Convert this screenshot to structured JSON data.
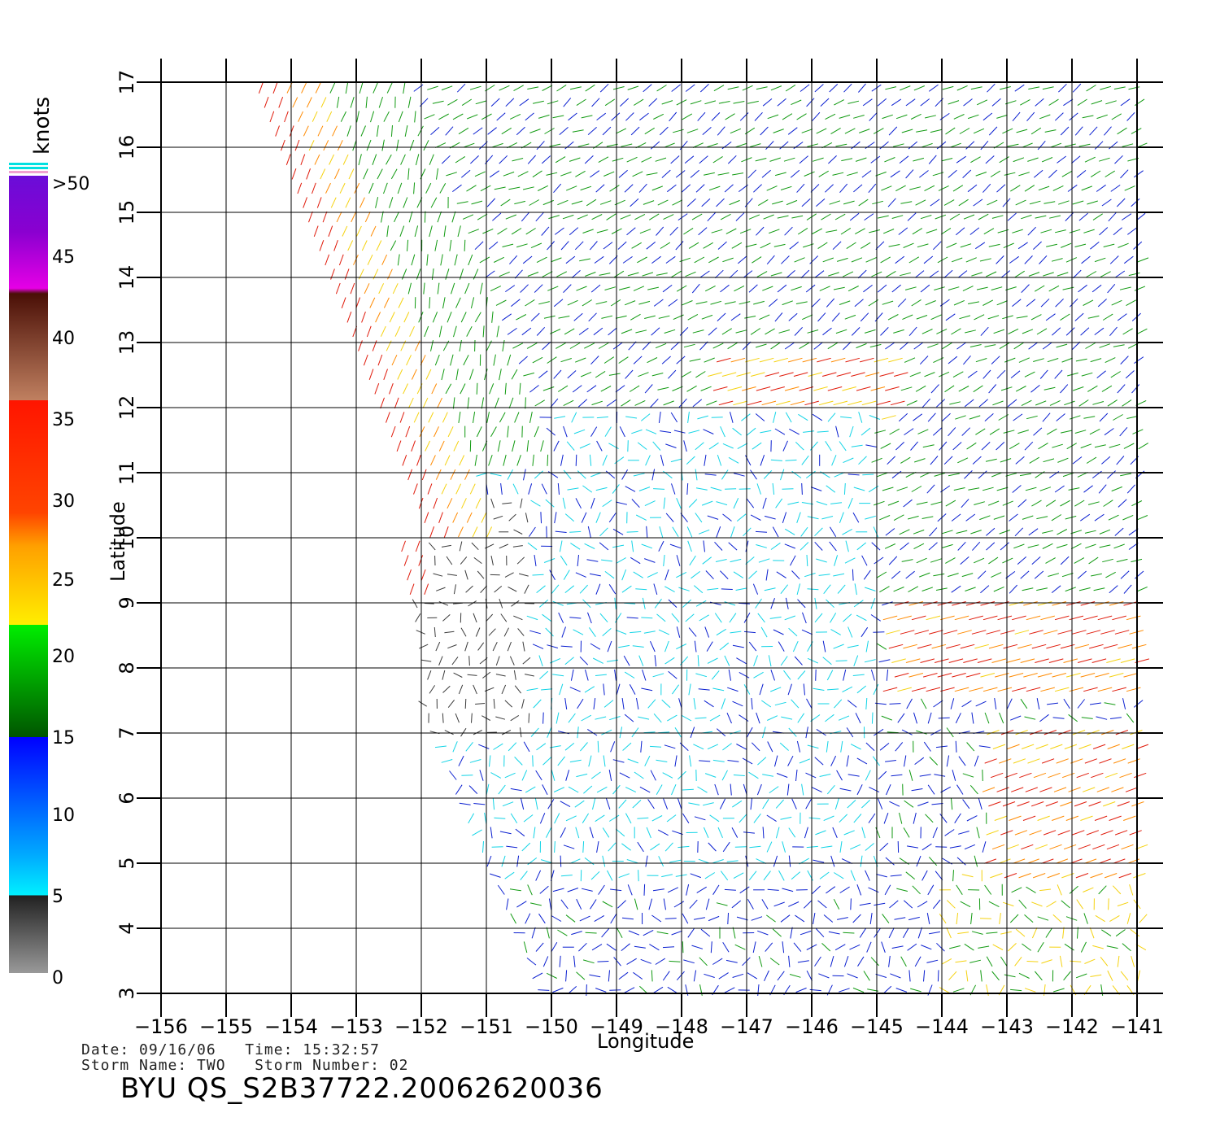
{
  "colorbar": {
    "unit": "knots",
    "labels": [
      ">50",
      "45",
      "40",
      "35",
      "30",
      "25",
      "20",
      "15",
      "10",
      "5",
      "0"
    ]
  },
  "axes": {
    "xlabel": "Longitude",
    "ylabel": "Latitude",
    "x_ticks": [
      "−156",
      "−155",
      "−154",
      "−153",
      "−152",
      "−151",
      "−150",
      "−149",
      "−148",
      "−147",
      "−146",
      "−145",
      "−144",
      "−143",
      "−142",
      "−141"
    ],
    "y_ticks": [
      "3",
      "4",
      "5",
      "6",
      "7",
      "8",
      "9",
      "10",
      "11",
      "12",
      "13",
      "14",
      "15",
      "16",
      "17"
    ],
    "xlim": [
      -156,
      -141
    ],
    "ylim": [
      3,
      17
    ]
  },
  "info": {
    "date_line": "Date: 09/16/06   Time: 15:32:57",
    "storm_line": "Storm Name: TWO   Storm Number: 02",
    "file_label": "BYU QS_S2B37722.20062620036"
  },
  "colors": {
    "black": "#3a3a3a",
    "cyan": "#12d4e6",
    "blue": "#0a1fd0",
    "green": "#119a11",
    "yellow": "#f5d20f",
    "orange": "#ff8a00",
    "red": "#e01b0b"
  }
}
